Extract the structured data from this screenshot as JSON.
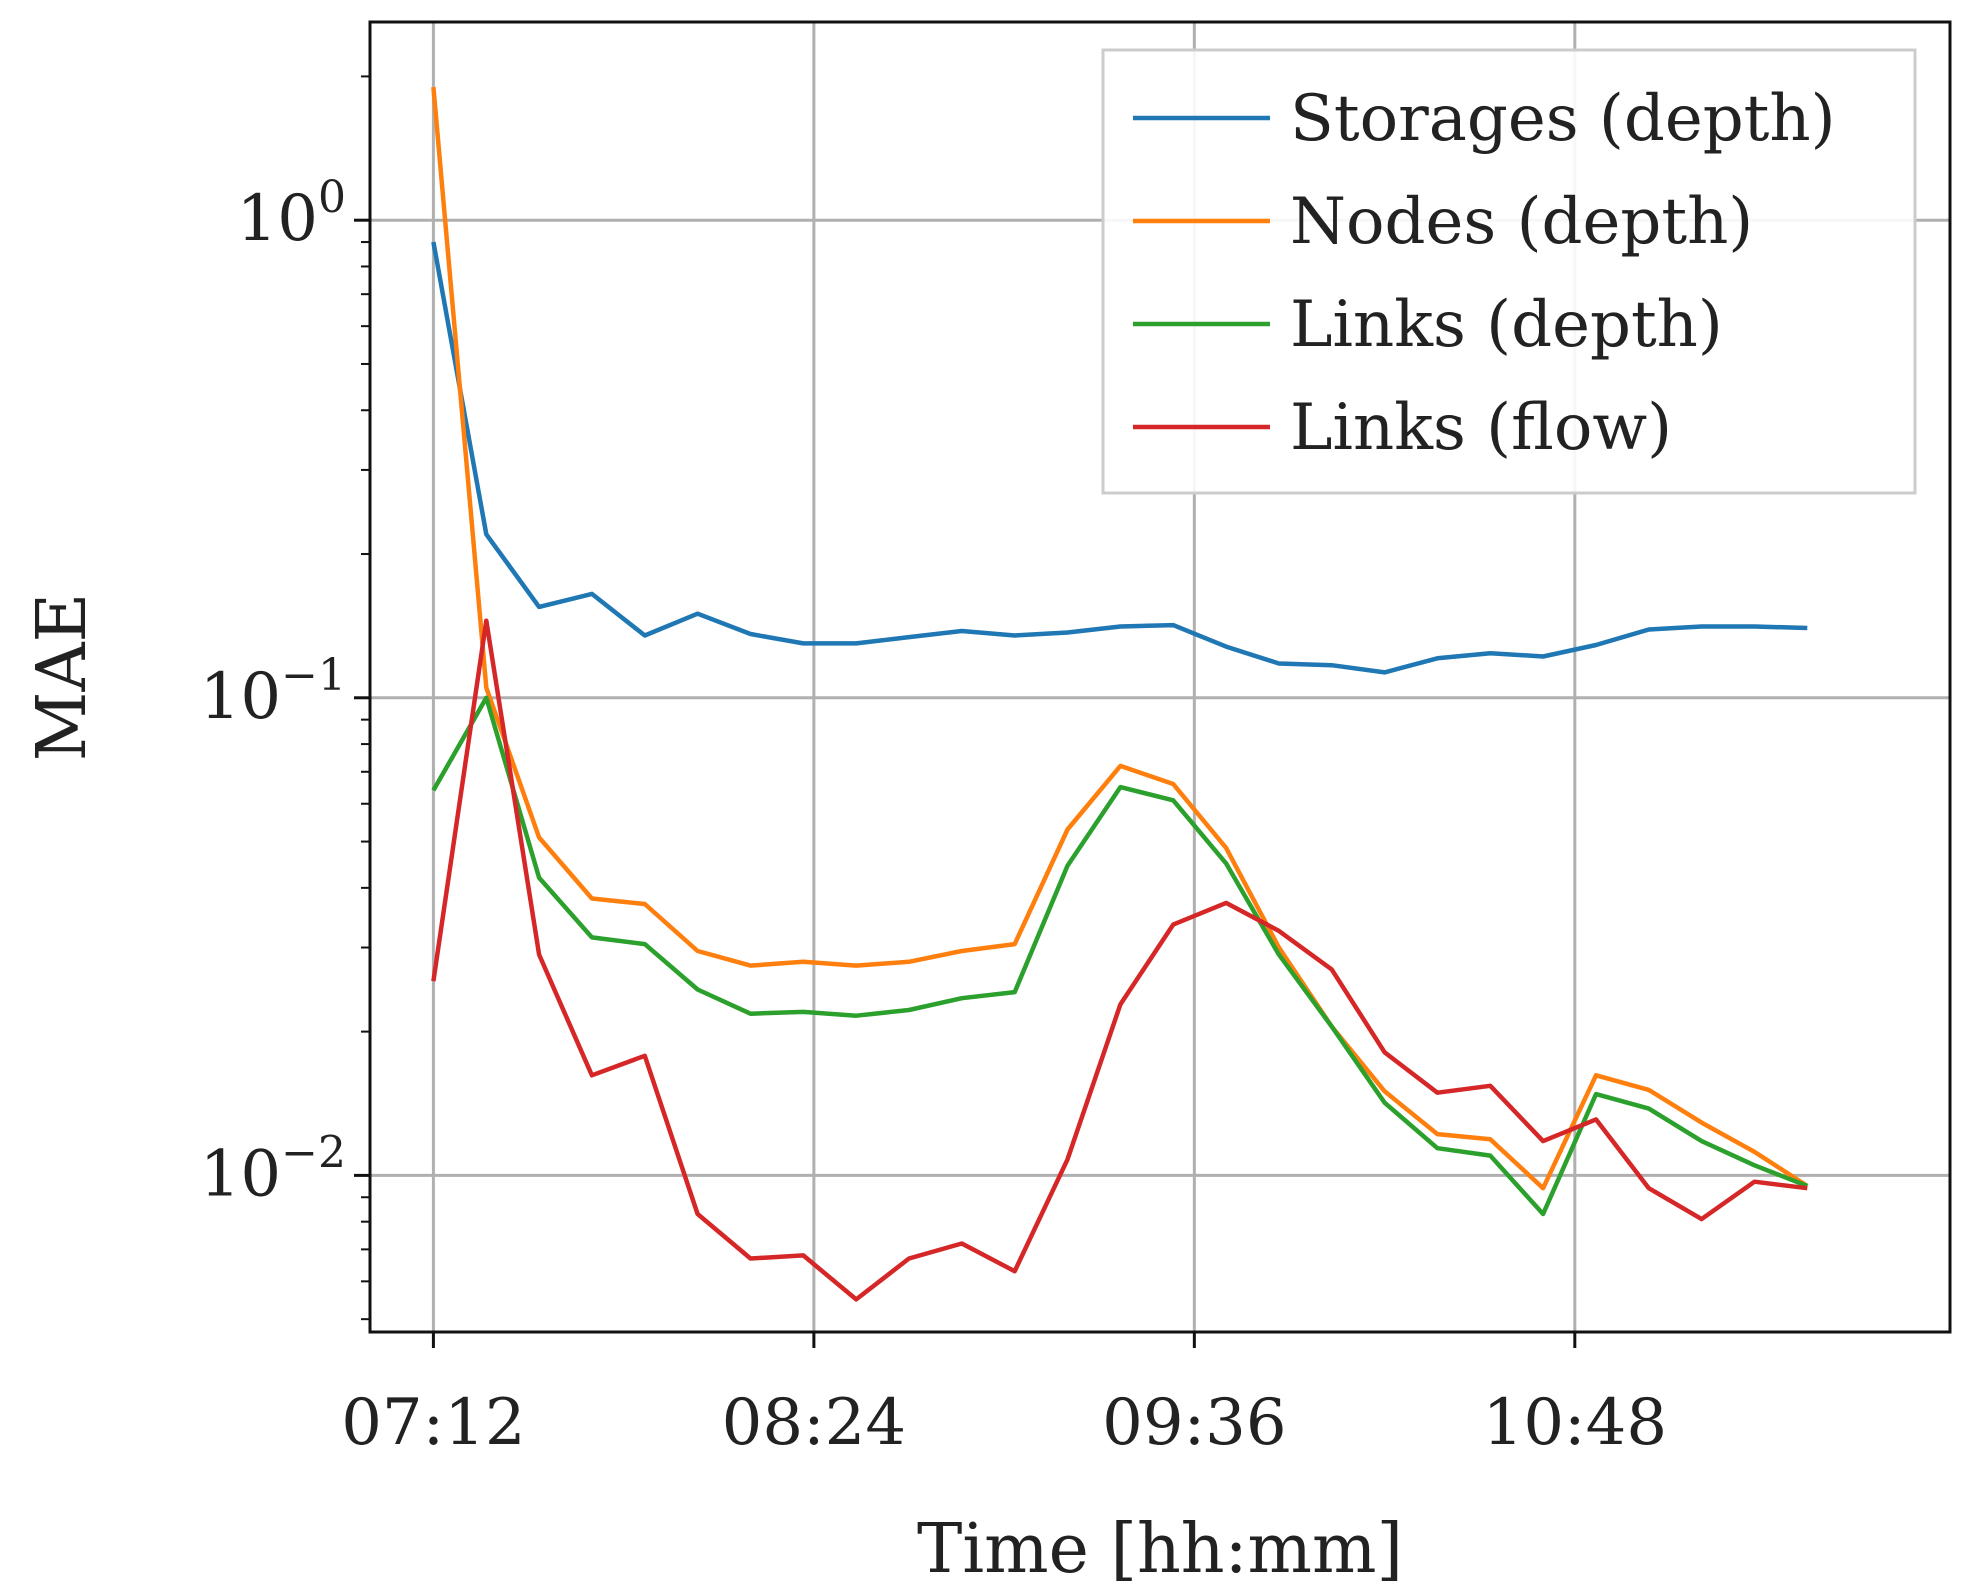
{
  "chart_data": {
    "type": "line",
    "xlabel": "Time [hh:mm]",
    "ylabel": "MAE",
    "yscale": "log",
    "ylim": [
      0.0047,
      2.6
    ],
    "xlim": [
      "07:00",
      "11:59"
    ],
    "grid": true,
    "legend_position": "top-right",
    "x_ticks": [
      {
        "value": "07:12",
        "label": "07:12"
      },
      {
        "value": "08:24",
        "label": "08:24"
      },
      {
        "value": "09:36",
        "label": "09:36"
      },
      {
        "value": "10:48",
        "label": "10:48"
      }
    ],
    "y_ticks": [
      {
        "value": 1,
        "base": "10",
        "exp": "0"
      },
      {
        "value": 0.1,
        "base": "10",
        "exp": "−1"
      },
      {
        "value": 0.01,
        "base": "10",
        "exp": "−2"
      }
    ],
    "x": [
      "07:12",
      "07:22",
      "07:32",
      "07:42",
      "07:52",
      "08:02",
      "08:12",
      "08:22",
      "08:32",
      "08:42",
      "08:52",
      "09:02",
      "09:12",
      "09:22",
      "09:32",
      "09:42",
      "09:52",
      "10:02",
      "10:12",
      "10:22",
      "10:32",
      "10:42",
      "10:52",
      "11:02",
      "11:12",
      "11:22",
      "11:32"
    ],
    "series": [
      {
        "name": "Storages (depth)",
        "color": "#1f77b4",
        "values": [
          0.9,
          0.22,
          0.155,
          0.165,
          0.135,
          0.15,
          0.136,
          0.13,
          0.13,
          0.134,
          0.138,
          0.135,
          0.137,
          0.141,
          0.142,
          0.128,
          0.118,
          0.117,
          0.113,
          0.121,
          0.124,
          0.122,
          0.129,
          0.139,
          0.141,
          0.141,
          0.14
        ]
      },
      {
        "name": "Nodes (depth)",
        "color": "#ff7f0e",
        "values": [
          1.9,
          0.105,
          0.051,
          0.038,
          0.037,
          0.0295,
          0.0275,
          0.028,
          0.0275,
          0.028,
          0.0295,
          0.0305,
          0.053,
          0.072,
          0.066,
          0.0485,
          0.03,
          0.0205,
          0.015,
          0.0122,
          0.0119,
          0.0094,
          0.0162,
          0.0151,
          0.0129,
          0.0112,
          0.0095
        ]
      },
      {
        "name": "Links (depth)",
        "color": "#2ca02c",
        "values": [
          0.064,
          0.1,
          0.042,
          0.0315,
          0.0305,
          0.0245,
          0.0218,
          0.022,
          0.0216,
          0.0222,
          0.0235,
          0.0242,
          0.0445,
          0.065,
          0.061,
          0.045,
          0.029,
          0.0205,
          0.0142,
          0.0114,
          0.011,
          0.0083,
          0.0148,
          0.0138,
          0.0118,
          0.0105,
          0.0095
        ]
      },
      {
        "name": "Links (flow)",
        "color": "#d62728",
        "values": [
          0.0255,
          0.145,
          0.029,
          0.0162,
          0.0178,
          0.0083,
          0.0067,
          0.0068,
          0.0055,
          0.0067,
          0.0072,
          0.0063,
          0.0108,
          0.0228,
          0.0335,
          0.0372,
          0.0325,
          0.027,
          0.0181,
          0.0149,
          0.0154,
          0.0118,
          0.0131,
          0.0094,
          0.0081,
          0.0097,
          0.0094
        ]
      }
    ]
  }
}
